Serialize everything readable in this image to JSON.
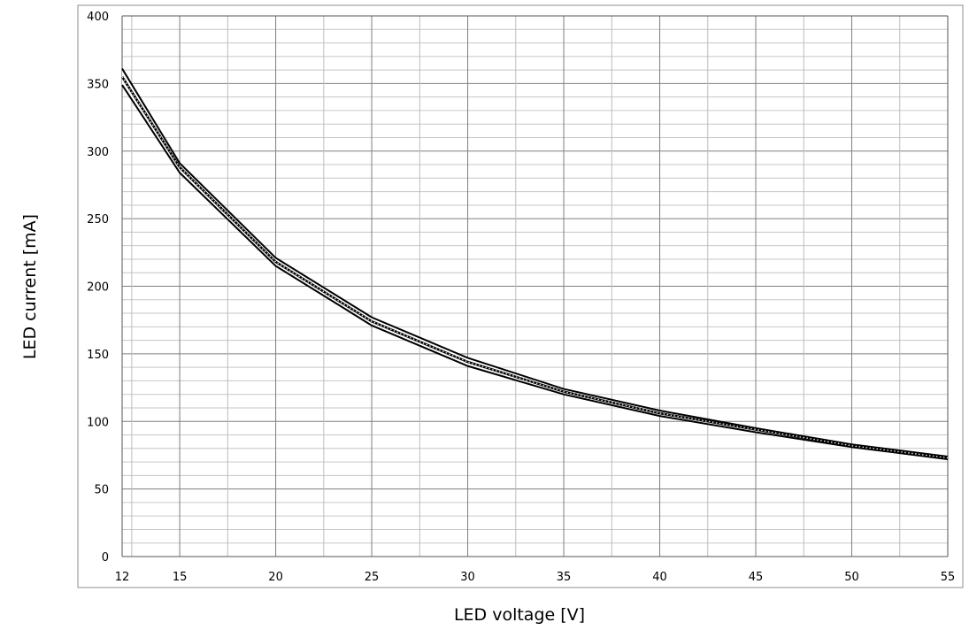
{
  "chart_data": {
    "type": "line",
    "title": "",
    "xlabel": "LED voltage [V]",
    "ylabel": "LED current [mA]",
    "xlim": [
      12,
      55
    ],
    "ylim": [
      0,
      400
    ],
    "x_ticks": [
      "12",
      "15",
      "20",
      "25",
      "30",
      "35",
      "40",
      "45",
      "50",
      "55"
    ],
    "y_ticks": [
      "0",
      "50",
      "100",
      "150",
      "200",
      "250",
      "300",
      "350",
      "400"
    ],
    "grid": true,
    "legend": "none",
    "series": [
      {
        "x": [
          12,
          15,
          20,
          25,
          30,
          35,
          40,
          45,
          50,
          55
        ],
        "y": [
          355,
          288,
          218,
          174,
          144,
          122,
          106,
          94,
          82,
          73
        ],
        "y_upper": [
          361,
          291,
          221,
          177,
          147,
          124,
          108,
          95,
          83,
          74
        ],
        "y_lower": [
          349,
          284,
          215,
          171,
          141,
          120,
          104,
          92,
          81,
          72
        ],
        "color": "#000000"
      }
    ]
  }
}
